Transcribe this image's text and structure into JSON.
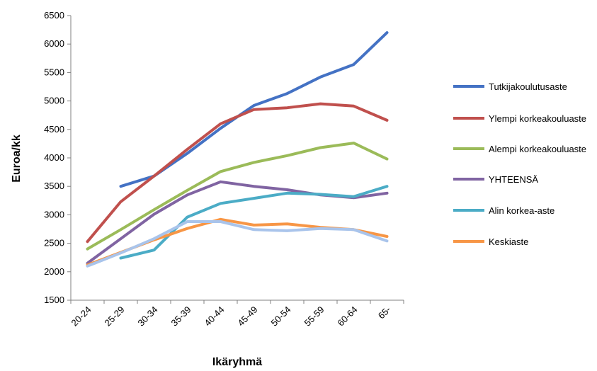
{
  "chart_data": {
    "type": "line",
    "xlabel": "Ikäryhmä",
    "ylabel": "Euroa/kk",
    "ylim": [
      1500,
      6500
    ],
    "yticks": [
      1500,
      2000,
      2500,
      3000,
      3500,
      4000,
      4500,
      5000,
      5500,
      6000,
      6500
    ],
    "categories": [
      "20-24",
      "25-29",
      "30-34",
      "35-39",
      "40-44",
      "45-49",
      "50-54",
      "55-59",
      "60-64",
      "65-"
    ],
    "grid": "horizontal-none",
    "legend_position": "right",
    "series": [
      {
        "name": "Tutkijakoulutusaste",
        "color": "#4472C4",
        "values": [
          null,
          3500,
          3680,
          4080,
          4520,
          4920,
          5130,
          5420,
          5640,
          6200
        ]
      },
      {
        "name": "Ylempi korkeakouluaste",
        "color": "#C0504D",
        "values": [
          2530,
          3230,
          3680,
          4150,
          4600,
          4850,
          4880,
          4950,
          4910,
          4660
        ]
      },
      {
        "name": "Alempi korkeakouluaste",
        "color": "#9BBB59",
        "values": [
          2400,
          2740,
          3090,
          3430,
          3760,
          3920,
          4040,
          4180,
          4260,
          3980
        ]
      },
      {
        "name": "YHTEENSÄ",
        "color": "#8064A2",
        "values": [
          2150,
          2580,
          3010,
          3350,
          3580,
          3500,
          3440,
          3350,
          3300,
          3380
        ]
      },
      {
        "name": "Alin korkea-aste",
        "color": "#4BACC6",
        "values": [
          null,
          2240,
          2380,
          2960,
          3200,
          3290,
          3380,
          3360,
          3320,
          3500
        ]
      },
      {
        "name": "Keskiaste",
        "color": "#F79646",
        "values": [
          2120,
          2340,
          2560,
          2760,
          2920,
          2820,
          2840,
          2780,
          2740,
          2620
        ]
      },
      {
        "name": "",
        "color": "#A9C4EB",
        "values": [
          2100,
          2330,
          2580,
          2880,
          2880,
          2740,
          2720,
          2760,
          2740,
          2540
        ]
      }
    ]
  }
}
